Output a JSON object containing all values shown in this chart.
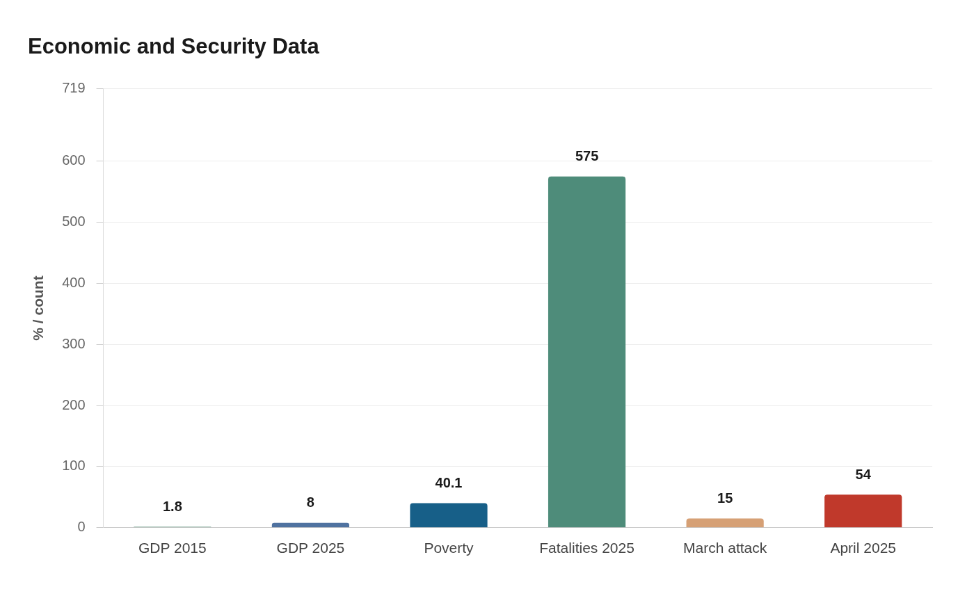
{
  "chart_data": {
    "type": "bar",
    "title": "Economic and Security Data",
    "ylabel": "% / count",
    "categories": [
      "GDP 2015",
      "GDP 2025",
      "Poverty",
      "Fatalities 2025",
      "March attack",
      "April 2025"
    ],
    "values": [
      1.8,
      8,
      40.1,
      575,
      15,
      54
    ],
    "colors": [
      "#8fb3a3",
      "#4f72a0",
      "#175f88",
      "#4e8c7a",
      "#d6a075",
      "#c0392b"
    ],
    "ylim": [
      0,
      719
    ],
    "yticks": [
      0,
      100,
      200,
      300,
      400,
      500,
      600,
      719
    ],
    "grid": "y",
    "data_labels": true,
    "legend": false
  }
}
